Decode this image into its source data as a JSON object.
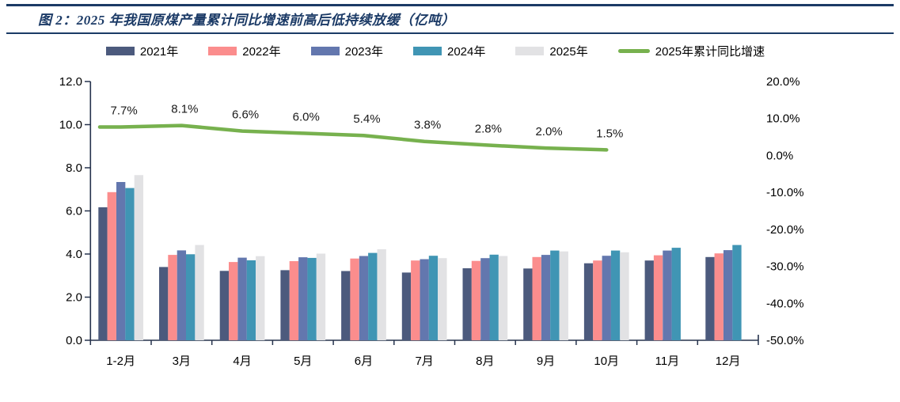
{
  "header": {
    "title": "图 2：2025 年我国原煤产量累计同比增速前高后低持续放缓（亿吨）"
  },
  "chart_data": {
    "type": "bar",
    "title": "图 2：2025 年我国原煤产量累计同比增速前高后低持续放缓（亿吨）",
    "unit": "亿吨",
    "grid": false,
    "legend_position": "top",
    "categories": [
      "1-2月",
      "3月",
      "4月",
      "5月",
      "6月",
      "7月",
      "8月",
      "9月",
      "10月",
      "11月",
      "12月"
    ],
    "series": [
      {
        "name": "2021年",
        "color": "#4C5A7D",
        "values": [
          6.17,
          3.4,
          3.22,
          3.25,
          3.21,
          3.14,
          3.34,
          3.33,
          3.57,
          3.7,
          3.86
        ]
      },
      {
        "name": "2022年",
        "color": "#FB8D8D",
        "values": [
          6.87,
          3.96,
          3.63,
          3.67,
          3.79,
          3.7,
          3.68,
          3.86,
          3.7,
          3.94,
          4.03
        ]
      },
      {
        "name": "2023年",
        "color": "#6377AE",
        "values": [
          7.34,
          4.17,
          3.83,
          3.85,
          3.91,
          3.76,
          3.81,
          3.96,
          3.92,
          4.16,
          4.18
        ]
      },
      {
        "name": "2024年",
        "color": "#4095B4",
        "values": [
          7.06,
          3.99,
          3.71,
          3.82,
          4.05,
          3.92,
          3.97,
          4.16,
          4.16,
          4.29,
          4.42
        ]
      },
      {
        "name": "2025年",
        "color": "#E2E2E4",
        "values": [
          7.66,
          4.42,
          3.9,
          4.02,
          4.22,
          3.81,
          3.91,
          4.12,
          4.08,
          null,
          null
        ]
      }
    ],
    "line_series": {
      "name": "2025年累计同比增速",
      "color": "#77B14E",
      "axis": "right",
      "values": [
        7.7,
        8.1,
        6.6,
        6.0,
        5.4,
        3.8,
        2.8,
        2.0,
        1.5
      ],
      "labels": [
        "7.7%",
        "8.1%",
        "6.6%",
        "6.0%",
        "5.4%",
        "3.8%",
        "2.8%",
        "2.0%",
        "1.5%"
      ]
    },
    "left_axis": {
      "min": 0,
      "max": 12,
      "ticks": [
        "0.0",
        "2.0",
        "4.0",
        "6.0",
        "8.0",
        "10.0",
        "12.0"
      ]
    },
    "right_axis": {
      "min": -50,
      "max": 20,
      "ticks": [
        "-50.0%",
        "-40.0%",
        "-30.0%",
        "-20.0%",
        "-10.0%",
        "0.0%",
        "10.0%",
        "20.0%"
      ]
    }
  },
  "colors": {
    "title": "#1B3A66",
    "axis": "#26334D",
    "label": "#000000",
    "background": "#FFFFFF"
  }
}
